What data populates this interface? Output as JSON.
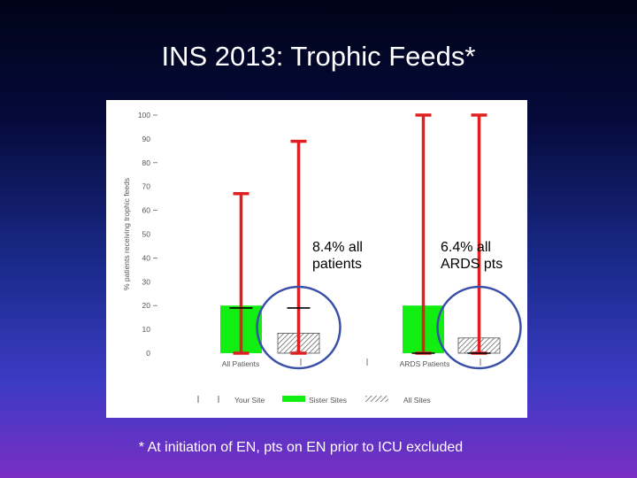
{
  "slide": {
    "title": "INS 2013: Trophic Feeds*",
    "footnote": "* At initiation of EN, pts on EN prior to ICU excluded",
    "callouts": [
      "8.4% all patients",
      "6.4% all ARDS pts"
    ]
  },
  "chart_data": {
    "type": "bar",
    "ylabel": "% patients receiving trophic feeds",
    "ylim": [
      0,
      100
    ],
    "yticks": [
      "100",
      "90",
      "80",
      "70",
      "60",
      "50",
      "40",
      "30",
      "20",
      "10",
      "0"
    ],
    "categories": [
      "All Patients",
      "ARDS Patients"
    ],
    "series": [
      {
        "name": "Your Site",
        "values": [
          null,
          null
        ]
      },
      {
        "name": "Sister Sites",
        "values": [
          20,
          20
        ]
      },
      {
        "name": "All Sites",
        "values": [
          8.4,
          6.4
        ]
      }
    ],
    "legend": [
      "Your Site",
      "Sister Sites",
      "All Sites"
    ],
    "legend_position": "bottom",
    "error_bars": [
      {
        "group": 0,
        "series": 1,
        "low": 0,
        "high": 67,
        "color": "#e02020"
      },
      {
        "group": 0,
        "series": 2,
        "low": 0,
        "high": 89,
        "color": "#e02020"
      },
      {
        "group": 1,
        "series": 1,
        "low": 0,
        "high": 100,
        "color": "#e02020"
      },
      {
        "group": 1,
        "series": 2,
        "low": 0,
        "high": 100,
        "color": "#e02020"
      }
    ],
    "colors": {
      "sister": "#11ee11",
      "error": "#e02020",
      "circle": "#3a4fa8"
    }
  }
}
